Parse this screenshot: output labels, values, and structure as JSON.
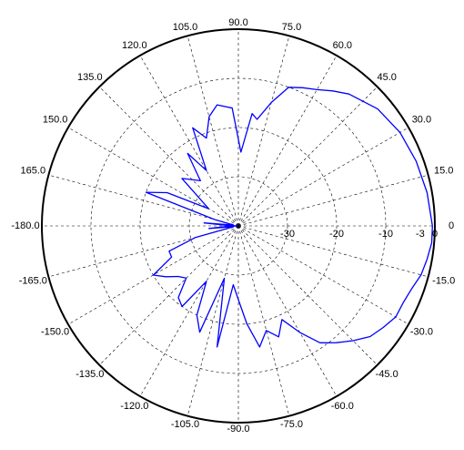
{
  "chart_data": {
    "type": "line",
    "subtype": "polar",
    "title": "",
    "angular_axis": {
      "direction": "counterclockwise",
      "zero_at": "right",
      "ticks": [
        0,
        15,
        30,
        45,
        60,
        75,
        90,
        105,
        120,
        135,
        150,
        165,
        180,
        -165,
        -150,
        -135,
        -120,
        -105,
        -90,
        -75,
        -60,
        -45,
        -30,
        -15
      ],
      "tick_labels": [
        "0",
        "15.0",
        "30.0",
        "45.0",
        "60.0",
        "75.0",
        "90.0",
        "105.0",
        "120.0",
        "135.0",
        "150.0",
        "165.0",
        "-180.0",
        "-165.0",
        "-150.0",
        "-135.0",
        "-120.0",
        "-105.0",
        "-90.0",
        "-75.0",
        "-60.0",
        "-45.0",
        "-30.0",
        "-15.0"
      ]
    },
    "radial_axis": {
      "range": [
        -40,
        0
      ],
      "ticks": [
        -30,
        -20,
        -10,
        -3,
        0
      ],
      "tick_labels": [
        "-30",
        "-20",
        "-10",
        "-3",
        "0"
      ],
      "grid_circles": [
        -30,
        -20,
        -10
      ]
    },
    "grid": true,
    "series": [
      {
        "color": "#0000ff",
        "theta": [
          0,
          10,
          20,
          30,
          40,
          50,
          55,
          60,
          65,
          70,
          75,
          80,
          83,
          88,
          93,
          100,
          105,
          110,
          115,
          120,
          125,
          130,
          140,
          150,
          155,
          160,
          165,
          170,
          175,
          178,
          180,
          -178,
          -175,
          -170,
          -165,
          -160,
          -155,
          -150,
          -145,
          -140,
          -135,
          -130,
          -125,
          -120,
          -115,
          -110,
          -105,
          -100,
          -95,
          -90,
          -85,
          -80,
          -75,
          -70,
          -65,
          -60,
          -55,
          -50,
          -45,
          -40,
          -35,
          -30,
          -25,
          -20,
          -15,
          -10,
          -5,
          0
        ],
        "r": [
          -0.5,
          -1.0,
          -1.5,
          -2.0,
          -3.0,
          -5.0,
          -6.5,
          -8.0,
          -9.0,
          -10.0,
          -14.0,
          -18.0,
          -17.0,
          -25.0,
          -16.0,
          -15.0,
          -17.0,
          -21.0,
          -18.0,
          -27.0,
          -22.0,
          -28.0,
          -25.0,
          -33.0,
          -24.0,
          -20.0,
          -35.0,
          -39.0,
          -33.0,
          -38.0,
          -40.0,
          -38.0,
          -34.0,
          -39.0,
          -31.0,
          -25.0,
          -25.0,
          -20.0,
          -22.0,
          -24.0,
          -25.0,
          -21.0,
          -20.0,
          -27.0,
          -20.0,
          -17.0,
          -29.0,
          -15.0,
          -28.0,
          -25.0,
          -20.0,
          -15.0,
          -18.0,
          -16.0,
          -19.0,
          -15.0,
          -11.0,
          -9.0,
          -7.0,
          -5.0,
          -4.0,
          -3.0,
          -3.0,
          -2.5,
          -1.5,
          -1.0,
          -0.5,
          -0.5
        ]
      }
    ]
  }
}
